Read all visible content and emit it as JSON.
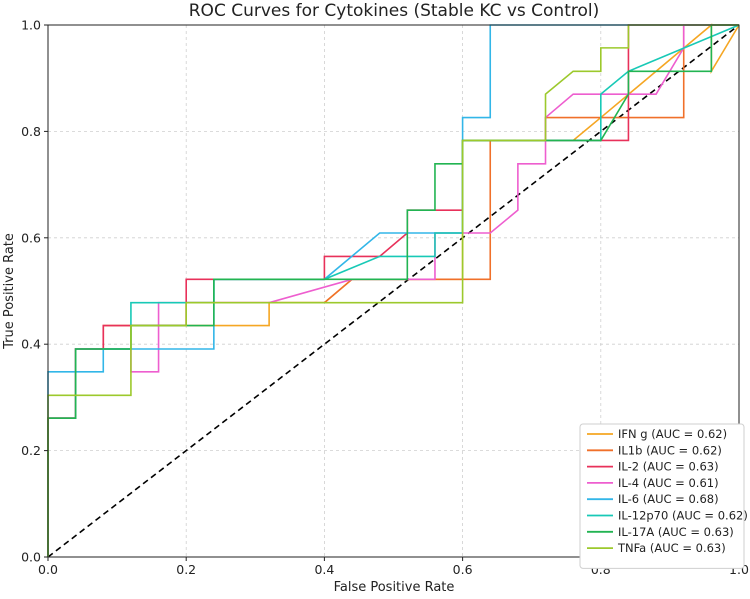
{
  "chart_data": {
    "type": "line",
    "title": "ROC Curves for Cytokines (Stable KC vs Control)",
    "xlabel": "False Positive Rate",
    "ylabel": "True Positive Rate",
    "xlim": [
      0.0,
      1.0
    ],
    "ylim": [
      0.0,
      1.0
    ],
    "xticks": [
      "0.0",
      "0.2",
      "0.4",
      "0.6",
      "0.8",
      "1.0"
    ],
    "yticks": [
      "0.0",
      "0.2",
      "0.4",
      "0.6",
      "0.8",
      "1.0"
    ],
    "grid": true,
    "legend_position": "lower-right",
    "diagonal": {
      "x": [
        0,
        1
      ],
      "y": [
        0,
        1
      ],
      "style": "dashed",
      "color": "#000000"
    },
    "series": [
      {
        "name": "IFN g (AUC = 0.62)",
        "color": "#f5a623",
        "x": [
          0,
          0,
          0.04,
          0.04,
          0.12,
          0.12,
          0.2,
          0.2,
          0.32,
          0.32,
          0.4,
          0.44,
          0.6,
          0.6,
          0.76,
          0.8,
          0.88,
          0.96,
          0.96,
          1.0
        ],
        "y": [
          0,
          0.261,
          0.261,
          0.391,
          0.391,
          0.435,
          0.435,
          0.435,
          0.435,
          0.478,
          0.478,
          0.522,
          0.522,
          0.783,
          0.783,
          0.826,
          0.913,
          1.0,
          0.913,
          1.0
        ]
      },
      {
        "name": "IL1b (AUC = 0.62)",
        "color": "#f0702a",
        "x": [
          0,
          0,
          0.04,
          0.04,
          0.08,
          0.08,
          0.2,
          0.2,
          0.4,
          0.4,
          0.44,
          0.64,
          0.64,
          0.72,
          0.72,
          0.92,
          0.92,
          1.0
        ],
        "y": [
          0,
          0.261,
          0.261,
          0.391,
          0.391,
          0.435,
          0.435,
          0.478,
          0.478,
          0.478,
          0.522,
          0.522,
          0.783,
          0.783,
          0.826,
          0.826,
          1.0,
          1.0
        ]
      },
      {
        "name": "IL-2 (AUC = 0.63)",
        "color": "#e8315a",
        "x": [
          0,
          0,
          0.04,
          0.04,
          0.08,
          0.08,
          0.2,
          0.2,
          0.4,
          0.4,
          0.48,
          0.52,
          0.52,
          0.6,
          0.6,
          0.84,
          0.84,
          1.0
        ],
        "y": [
          0,
          0.261,
          0.261,
          0.391,
          0.391,
          0.435,
          0.435,
          0.522,
          0.522,
          0.565,
          0.565,
          0.609,
          0.652,
          0.652,
          0.783,
          0.783,
          1.0,
          1.0
        ]
      },
      {
        "name": "IL-4 (AUC = 0.61)",
        "color": "#ee5ecf",
        "x": [
          0,
          0,
          0.04,
          0.04,
          0.12,
          0.12,
          0.16,
          0.16,
          0.32,
          0.32,
          0.44,
          0.48,
          0.56,
          0.56,
          0.64,
          0.68,
          0.68,
          0.72,
          0.72,
          0.76,
          0.88,
          0.92,
          0.92,
          1.0
        ],
        "y": [
          0,
          0.261,
          0.261,
          0.391,
          0.391,
          0.348,
          0.348,
          0.478,
          0.478,
          0.478,
          0.522,
          0.522,
          0.522,
          0.609,
          0.609,
          0.652,
          0.739,
          0.739,
          0.826,
          0.87,
          0.87,
          0.957,
          1.0,
          1.0
        ]
      },
      {
        "name": "IL-6 (AUC = 0.68)",
        "color": "#32b6e8",
        "x": [
          0,
          0,
          0.08,
          0.08,
          0.12,
          0.12,
          0.24,
          0.24,
          0.4,
          0.4,
          0.48,
          0.6,
          0.6,
          0.64,
          0.64,
          1.0
        ],
        "y": [
          0,
          0.348,
          0.348,
          0.391,
          0.391,
          0.391,
          0.391,
          0.522,
          0.522,
          0.522,
          0.609,
          0.609,
          0.826,
          0.826,
          1.0,
          1.0
        ]
      },
      {
        "name": "IL-12p70 (AUC = 0.62)",
        "color": "#18c9b6",
        "x": [
          0,
          0,
          0.04,
          0.04,
          0.12,
          0.12,
          0.24,
          0.24,
          0.4,
          0.4,
          0.48,
          0.56,
          0.56,
          0.6,
          0.6,
          0.8,
          0.8,
          0.84,
          0.84,
          1.0
        ],
        "y": [
          0,
          0.261,
          0.261,
          0.391,
          0.391,
          0.478,
          0.478,
          0.522,
          0.522,
          0.522,
          0.565,
          0.565,
          0.609,
          0.609,
          0.783,
          0.783,
          0.87,
          0.913,
          0.913,
          1.0
        ]
      },
      {
        "name": "IL-17A (AUC = 0.63)",
        "color": "#22b452",
        "x": [
          0,
          0,
          0.04,
          0.04,
          0.12,
          0.12,
          0.24,
          0.24,
          0.52,
          0.52,
          0.56,
          0.56,
          0.6,
          0.6,
          0.8,
          0.8,
          0.84,
          0.84,
          0.96,
          0.96,
          1.0
        ],
        "y": [
          0,
          0.261,
          0.261,
          0.391,
          0.391,
          0.435,
          0.435,
          0.522,
          0.522,
          0.652,
          0.652,
          0.739,
          0.739,
          0.783,
          0.783,
          0.783,
          0.87,
          0.913,
          0.913,
          1.0,
          1.0
        ]
      },
      {
        "name": "TNFa (AUC = 0.63)",
        "color": "#9cc92c",
        "x": [
          0,
          0,
          0.12,
          0.12,
          0.2,
          0.2,
          0.6,
          0.6,
          0.72,
          0.72,
          0.76,
          0.8,
          0.8,
          0.84,
          0.84,
          1.0
        ],
        "y": [
          0,
          0.304,
          0.304,
          0.435,
          0.435,
          0.478,
          0.478,
          0.783,
          0.783,
          0.87,
          0.913,
          0.913,
          0.957,
          0.957,
          1.0,
          1.0
        ]
      }
    ]
  }
}
